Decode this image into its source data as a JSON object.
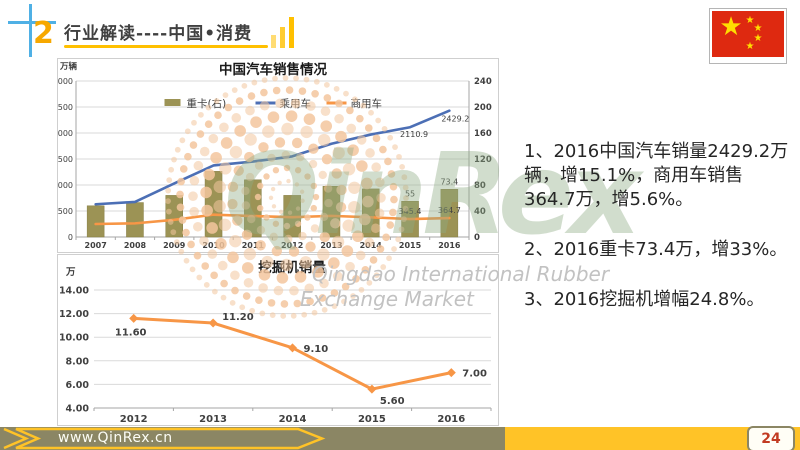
{
  "header": {
    "number": "2",
    "title": "行业解读----中国•消费",
    "accent_color": "#FFC000",
    "number_color": "#F7A800",
    "cross_color": "#4FB0E5"
  },
  "flag": {
    "name": "china-flag",
    "field_color": "#DE2910",
    "star_color": "#FFDE00"
  },
  "chart_data": [
    {
      "type": "bar",
      "subtype": "combo-bar-line",
      "title": "中国汽车销售情况",
      "unit_label": "万辆",
      "categories": [
        "2007",
        "2008",
        "2009",
        "2010",
        "2011",
        "2012",
        "2013",
        "2014",
        "2015",
        "2016"
      ],
      "left_axis": {
        "min": 0,
        "max": 3000,
        "step": 500,
        "ticks": [
          "3000",
          "2500",
          "2000",
          "1500",
          "1000",
          "500",
          "0"
        ]
      },
      "right_axis": {
        "min": 0,
        "max": 240,
        "step": 40,
        "ticks": [
          "240",
          "200",
          "160",
          "120",
          "80",
          "40",
          "0"
        ]
      },
      "grid": true,
      "legend_position": "top-inside",
      "series": [
        {
          "name": "重卡(右)",
          "type": "bar",
          "axis": "right",
          "color": "#9C9355",
          "values": [
            48,
            53,
            64,
            101,
            88,
            64,
            78,
            74,
            55,
            73.4
          ],
          "point_labels": [
            {
              "i": 8,
              "text": "55",
              "pos": "above"
            },
            {
              "i": 9,
              "text": "73.4",
              "pos": "above"
            }
          ]
        },
        {
          "name": "乘用车",
          "type": "line",
          "axis": "left",
          "color": "#4C6FB5",
          "values": [
            630,
            675,
            1030,
            1376,
            1450,
            1550,
            1793,
            1970,
            2110.9,
            2429.2
          ],
          "point_labels": [
            {
              "i": 8,
              "text": "2110.9",
              "pos": "below"
            },
            {
              "i": 9,
              "text": "2429.2",
              "pos": "below-left"
            }
          ]
        },
        {
          "name": "商用车",
          "type": "line",
          "axis": "left",
          "color": "#F79646",
          "values": [
            250,
            262,
            331,
            430,
            403,
            381,
            406,
            379,
            345.4,
            364.7
          ],
          "point_labels": [
            {
              "i": 8,
              "text": "345.4",
              "pos": "above"
            },
            {
              "i": 9,
              "text": "364.7",
              "pos": "above"
            }
          ]
        }
      ]
    },
    {
      "type": "line",
      "title": "挖掘机销量",
      "unit_label": "万",
      "categories": [
        "2012",
        "2013",
        "2014",
        "2015",
        "2016"
      ],
      "y_axis": {
        "min": 4,
        "max": 14,
        "step": 2,
        "ticks": [
          "14.00",
          "12.00",
          "10.00",
          "8.00",
          "6.00",
          "4.00"
        ]
      },
      "grid": true,
      "series": [
        {
          "name": "挖掘机销量",
          "color": "#F79646",
          "marker": "diamond",
          "values": [
            11.6,
            11.2,
            9.1,
            5.6,
            7.0
          ],
          "point_labels": [
            {
              "i": 0,
              "text": "11.60",
              "pos": "below"
            },
            {
              "i": 1,
              "text": "11.20",
              "pos": "right-up"
            },
            {
              "i": 2,
              "text": "9.10",
              "pos": "right"
            },
            {
              "i": 3,
              "text": "5.60",
              "pos": "below-right"
            },
            {
              "i": 4,
              "text": "7.00",
              "pos": "right"
            }
          ]
        }
      ]
    }
  ],
  "notes": {
    "items": [
      "1、2016中国汽车销量2429.2万辆，增15.1%，商用车销售364.7万，增5.6%。",
      "2、2016重卡73.4万，增33%。",
      "3、2016挖掘机增幅24.8%。"
    ]
  },
  "watermark": {
    "logo": "QinRex",
    "line1": "Qingdao International Rubber",
    "line2": "Exchange Market",
    "dot_color": "#F3C69E",
    "logo_color": "#8FAC85"
  },
  "footer": {
    "url": "www.QinRex.cn",
    "page": "24",
    "left_color": "#8B8664",
    "right_color": "#FFC327"
  }
}
